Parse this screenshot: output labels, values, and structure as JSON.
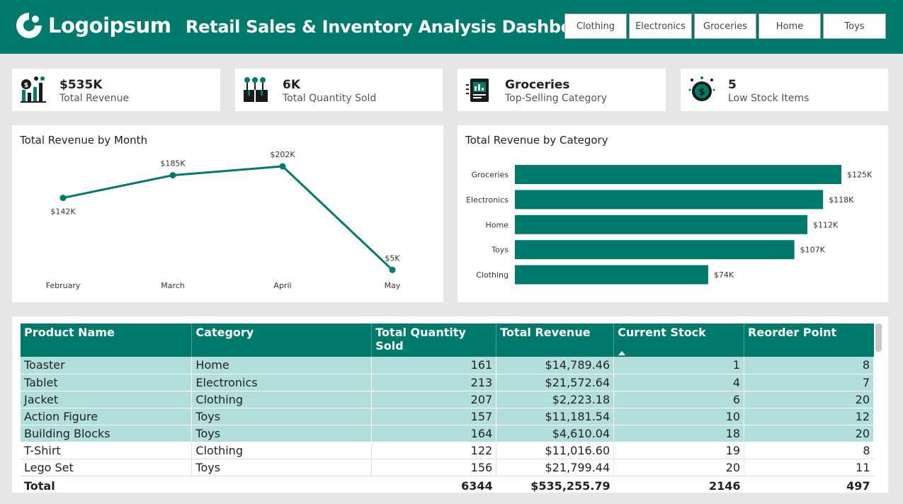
{
  "header": {
    "logo_text": "Logoipsum",
    "title": "Retail Sales & Inventory Analysis Dashboard",
    "categories": [
      "Clothing",
      "Electronics",
      "Groceries",
      "Home",
      "Toys"
    ]
  },
  "kpis": [
    {
      "value": "$535K",
      "label": "Total Revenue",
      "icon": "revenue-chart-icon"
    },
    {
      "value": "6K",
      "label": "Total Quantity Sold",
      "icon": "boxes-icon"
    },
    {
      "value": "Groceries",
      "label": "Top-Selling Category",
      "icon": "report-icon"
    },
    {
      "value": "5",
      "label": "Low Stock Items",
      "icon": "coin-icon"
    }
  ],
  "colors": {
    "accent": "#007a6b",
    "highlight_row": "#b2dfdb"
  },
  "line_chart": {
    "title": "Total Revenue by Month"
  },
  "bar_chart": {
    "title": "Total Revenue by Category"
  },
  "chart_data": [
    {
      "type": "line",
      "title": "Total Revenue by Month",
      "categories": [
        "February",
        "March",
        "April",
        "May"
      ],
      "values": [
        142,
        185,
        202,
        5
      ],
      "value_labels": [
        "$142K",
        "$185K",
        "$202K",
        "$5K"
      ],
      "unit": "K"
    },
    {
      "type": "bar",
      "orientation": "horizontal",
      "title": "Total Revenue by Category",
      "categories": [
        "Groceries",
        "Electronics",
        "Home",
        "Toys",
        "Clothing"
      ],
      "values": [
        125,
        118,
        112,
        107,
        74
      ],
      "value_labels": [
        "$125K",
        "$118K",
        "$112K",
        "$107K",
        "$74K"
      ],
      "unit": "K"
    }
  ],
  "table": {
    "columns": [
      "Product Name",
      "Category",
      "Total Quantity Sold",
      "Total Revenue",
      "Current Stock",
      "Reorder Point"
    ],
    "rows": [
      {
        "name": "Toaster",
        "category": "Home",
        "qty": "161",
        "revenue": "$14,789.46",
        "stock": "1",
        "reorder": "8",
        "highlight": true
      },
      {
        "name": "Tablet",
        "category": "Electronics",
        "qty": "213",
        "revenue": "$21,572.64",
        "stock": "4",
        "reorder": "7",
        "highlight": true
      },
      {
        "name": "Jacket",
        "category": "Clothing",
        "qty": "207",
        "revenue": "$2,223.18",
        "stock": "6",
        "reorder": "20",
        "highlight": true
      },
      {
        "name": "Action Figure",
        "category": "Toys",
        "qty": "157",
        "revenue": "$11,181.54",
        "stock": "10",
        "reorder": "12",
        "highlight": true
      },
      {
        "name": "Building Blocks",
        "category": "Toys",
        "qty": "164",
        "revenue": "$4,610.04",
        "stock": "18",
        "reorder": "20",
        "highlight": true
      },
      {
        "name": "T-Shirt",
        "category": "Clothing",
        "qty": "122",
        "revenue": "$11,016.60",
        "stock": "19",
        "reorder": "8",
        "highlight": false
      },
      {
        "name": "Lego Set",
        "category": "Toys",
        "qty": "156",
        "revenue": "$21,799.44",
        "stock": "20",
        "reorder": "11",
        "highlight": false
      }
    ],
    "total": {
      "label": "Total",
      "qty": "6344",
      "revenue": "$535,255.79",
      "stock": "2146",
      "reorder": "497"
    }
  }
}
